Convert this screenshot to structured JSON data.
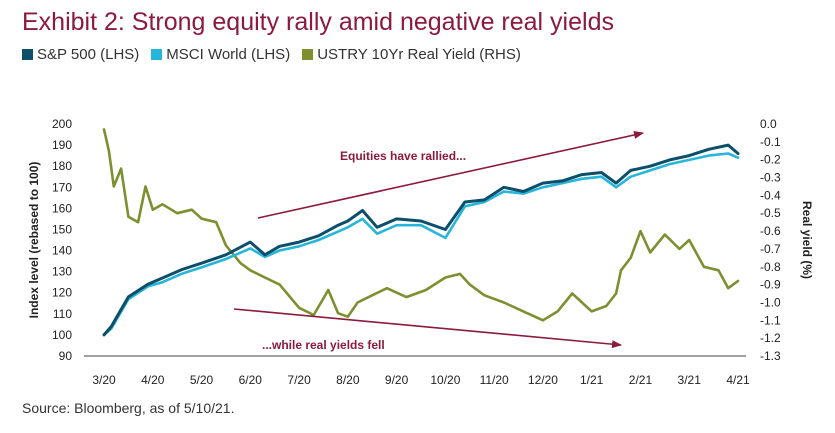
{
  "chart_data": {
    "type": "line",
    "title": "Exhibit 2: Strong equity rally amid negative real yields",
    "source": "Source: Bloomberg, as of 5/10/21.",
    "x_ticks": [
      "3/20",
      "4/20",
      "5/20",
      "6/20",
      "7/20",
      "8/20",
      "9/20",
      "10/20",
      "11/20",
      "12/20",
      "1/21",
      "2/21",
      "3/21",
      "4/21"
    ],
    "y_left": {
      "label": "Index level (rebased to 100)",
      "min": 90,
      "max": 200,
      "ticks": [
        "200",
        "190",
        "180",
        "170",
        "160",
        "150",
        "140",
        "130",
        "120",
        "110",
        "100",
        "90"
      ]
    },
    "y_right": {
      "label": "Real yield (%)",
      "min": -1.3,
      "max": 0.0,
      "ticks": [
        "0.0",
        "-0.1",
        "-0.2",
        "-0.3",
        "-0.4",
        "-0.5",
        "-0.6",
        "-0.7",
        "-0.8",
        "-0.9",
        "-1.0",
        "-1.1",
        "-1.2",
        "-1.3"
      ]
    },
    "legend_position": "top-left",
    "grid": false,
    "series": [
      {
        "name": "S&P 500 (LHS)",
        "axis": "left",
        "color": "#0d4f6b",
        "x": [
          0,
          0.15,
          0.5,
          0.9,
          1.2,
          1.6,
          2.0,
          2.5,
          3.0,
          3.3,
          3.6,
          4.0,
          4.4,
          4.8,
          5.0,
          5.3,
          5.6,
          6.0,
          6.5,
          7.0,
          7.4,
          7.8,
          8.2,
          8.6,
          9.0,
          9.4,
          9.8,
          10.2,
          10.5,
          10.8,
          11.2,
          11.6,
          12.0,
          12.4,
          12.8,
          13.0
        ],
        "values": [
          100,
          104,
          118,
          124,
          127,
          131,
          134,
          138,
          144,
          138,
          142,
          144,
          147,
          152,
          154,
          159,
          151,
          155,
          154,
          150,
          163,
          164,
          170,
          168,
          172,
          173,
          176,
          177,
          172,
          178,
          180,
          183,
          185,
          188,
          190,
          186
        ]
      },
      {
        "name": "MSCI World (LHS)",
        "axis": "left",
        "color": "#27b5d9",
        "x": [
          0,
          0.15,
          0.5,
          0.9,
          1.2,
          1.6,
          2.0,
          2.5,
          3.0,
          3.3,
          3.6,
          4.0,
          4.4,
          4.8,
          5.0,
          5.3,
          5.6,
          6.0,
          6.5,
          7.0,
          7.4,
          7.8,
          8.2,
          8.6,
          9.0,
          9.4,
          9.8,
          10.2,
          10.5,
          10.8,
          11.2,
          11.6,
          12.0,
          12.4,
          12.8,
          13.0
        ],
        "values": [
          100,
          103,
          117,
          123,
          125,
          129,
          132,
          136,
          141,
          137,
          140,
          142,
          145,
          149,
          151,
          155,
          148,
          152,
          152,
          146,
          161,
          163,
          168,
          167,
          170,
          172,
          174,
          175,
          170,
          175,
          178,
          181,
          183,
          185,
          186,
          184
        ]
      },
      {
        "name": "USTRY 10Yr Real Yield (RHS)",
        "axis": "right",
        "color": "#7d8f2f",
        "x": [
          0,
          0.1,
          0.2,
          0.35,
          0.5,
          0.7,
          0.85,
          1.0,
          1.2,
          1.5,
          1.8,
          2.0,
          2.3,
          2.5,
          2.8,
          3.0,
          3.3,
          3.6,
          4.0,
          4.3,
          4.6,
          4.8,
          5.0,
          5.2,
          5.5,
          5.8,
          6.2,
          6.6,
          7.0,
          7.3,
          7.5,
          7.8,
          8.2,
          8.6,
          9.0,
          9.3,
          9.6,
          10.0,
          10.3,
          10.5,
          10.6,
          10.8,
          11.0,
          11.2,
          11.5,
          11.8,
          12.0,
          12.3,
          12.6,
          12.8,
          13.0
        ],
        "values": [
          -0.03,
          -0.15,
          -0.35,
          -0.25,
          -0.52,
          -0.55,
          -0.35,
          -0.48,
          -0.45,
          -0.5,
          -0.48,
          -0.53,
          -0.55,
          -0.68,
          -0.78,
          -0.82,
          -0.86,
          -0.9,
          -1.03,
          -1.07,
          -0.93,
          -1.06,
          -1.08,
          -1.0,
          -0.96,
          -0.92,
          -0.97,
          -0.93,
          -0.86,
          -0.84,
          -0.9,
          -0.96,
          -1.0,
          -1.05,
          -1.1,
          -1.05,
          -0.95,
          -1.05,
          -1.02,
          -0.95,
          -0.82,
          -0.75,
          -0.6,
          -0.72,
          -0.62,
          -0.7,
          -0.65,
          -0.8,
          -0.82,
          -0.92,
          -0.88
        ]
      }
    ],
    "annotations": [
      {
        "text": "Equities have rallied...",
        "color": "#8b1a3c"
      },
      {
        "text": "...while real yields fell",
        "color": "#8b1a3c"
      }
    ]
  }
}
